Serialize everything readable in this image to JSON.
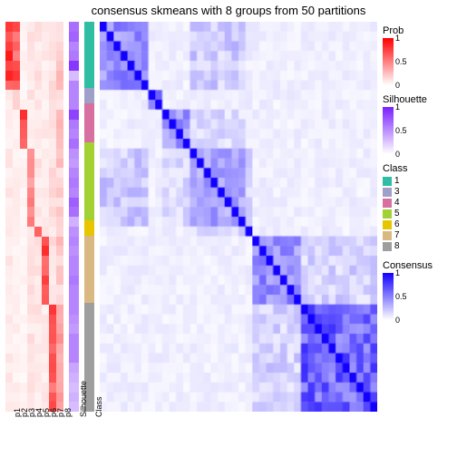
{
  "title": "consensus skmeans with 8 groups from 50 partitions",
  "background_color": "#ffffff",
  "fonts": {
    "title_pt": 13,
    "tick_pt": 9,
    "legend_title_pt": 11,
    "legend_pt": 10
  },
  "annotation_tracks": {
    "p_labels": [
      "p1",
      "p2",
      "p3",
      "p4",
      "p5",
      "p6",
      "p7",
      "p8"
    ],
    "extra_labels": [
      "Silhouette",
      "Class"
    ],
    "prob_palette": {
      "low": "#ffffff",
      "high": "#ff0000"
    },
    "silhouette_palette": {
      "low": "#ffffff",
      "high": "#7a1fff"
    },
    "class_colors": {
      "1": "#2fbda3",
      "3": "#9fa0c9",
      "4": "#d86fa1",
      "5": "#a3d133",
      "6": "#e7c500",
      "7": "#d9b882",
      "8": "#9e9e9e"
    }
  },
  "class_blocks": [
    {
      "class": "1",
      "frac": 0.17
    },
    {
      "class": "3",
      "frac": 0.04
    },
    {
      "class": "4",
      "frac": 0.1
    },
    {
      "class": "5",
      "frac": 0.2
    },
    {
      "class": "6",
      "frac": 0.04
    },
    {
      "class": "7",
      "frac": 0.17
    },
    {
      "class": "8",
      "frac": 0.28
    }
  ],
  "p_columns": [
    {
      "id": "p1",
      "peak_block": 0,
      "peak_intensity": 0.95,
      "bg": 0.08
    },
    {
      "id": "p2",
      "peak_block": 0,
      "peak_intensity": 0.8,
      "bg": 0.06
    },
    {
      "id": "p3",
      "peak_block": 2,
      "peak_intensity": 0.95,
      "bg": 0.05
    },
    {
      "id": "p4",
      "peak_block": 3,
      "peak_intensity": 0.55,
      "bg": 0.1
    },
    {
      "id": "p5",
      "peak_block": 4,
      "peak_intensity": 0.85,
      "bg": 0.1
    },
    {
      "id": "p6",
      "peak_block": 5,
      "peak_intensity": 0.9,
      "bg": 0.08
    },
    {
      "id": "p7",
      "peak_block": 6,
      "peak_intensity": 0.85,
      "bg": 0.12
    },
    {
      "id": "p8",
      "peak_block": 6,
      "peak_intensity": 0.45,
      "bg": 0.2
    }
  ],
  "silhouette_column": [
    0.65,
    0.7,
    0.55,
    0.6,
    0.9,
    0.3,
    0.55,
    0.55,
    0.55,
    0.85,
    0.6,
    0.55,
    0.65,
    0.5,
    0.45,
    0.55,
    0.6,
    0.55,
    0.72,
    0.65,
    0.35,
    0.5,
    0.55,
    0.5,
    0.55,
    0.55,
    0.6,
    0.55,
    0.55,
    0.55,
    0.5,
    0.45,
    0.55,
    0.55,
    0.55,
    0.4,
    0.35,
    0.3,
    0.35,
    0.3
  ],
  "consensus_matrix": {
    "palette": {
      "low": "#ffffff",
      "high": "#1200ff"
    },
    "n": 40,
    "block_strength": [
      0.55,
      0.65,
      0.5,
      0.45,
      0.7,
      0.55,
      0.75
    ],
    "off_block": 0.08,
    "cross_pairs": [
      [
        0,
        3,
        0.25
      ],
      [
        3,
        4,
        0.2
      ],
      [
        5,
        6,
        0.22
      ],
      [
        2,
        3,
        0.18
      ]
    ]
  },
  "legends": {
    "prob": {
      "title": "Prob",
      "ticks": [
        {
          "v": 0,
          "l": "0"
        },
        {
          "v": 0.5,
          "l": "0.5"
        },
        {
          "v": 1,
          "l": "1"
        }
      ],
      "low": "#ffffff",
      "high": "#ff0000"
    },
    "silhouette": {
      "title": "Silhouette",
      "ticks": [
        {
          "v": 0,
          "l": "0"
        },
        {
          "v": 0.5,
          "l": "0.5"
        },
        {
          "v": 1,
          "l": "1"
        }
      ],
      "low": "#ffffff",
      "high": "#7a1fff"
    },
    "class": {
      "title": "Class",
      "items": [
        {
          "label": "1",
          "color": "#2fbda3"
        },
        {
          "label": "3",
          "color": "#9fa0c9"
        },
        {
          "label": "4",
          "color": "#d86fa1"
        },
        {
          "label": "5",
          "color": "#a3d133"
        },
        {
          "label": "6",
          "color": "#e7c500"
        },
        {
          "label": "7",
          "color": "#d9b882"
        },
        {
          "label": "8",
          "color": "#9e9e9e"
        }
      ]
    },
    "consensus": {
      "title": "Consensus",
      "ticks": [
        {
          "v": 0,
          "l": "0"
        },
        {
          "v": 0.5,
          "l": "0.5"
        },
        {
          "v": 1,
          "l": "1"
        }
      ],
      "low": "#ffffff",
      "high": "#1200ff"
    }
  }
}
